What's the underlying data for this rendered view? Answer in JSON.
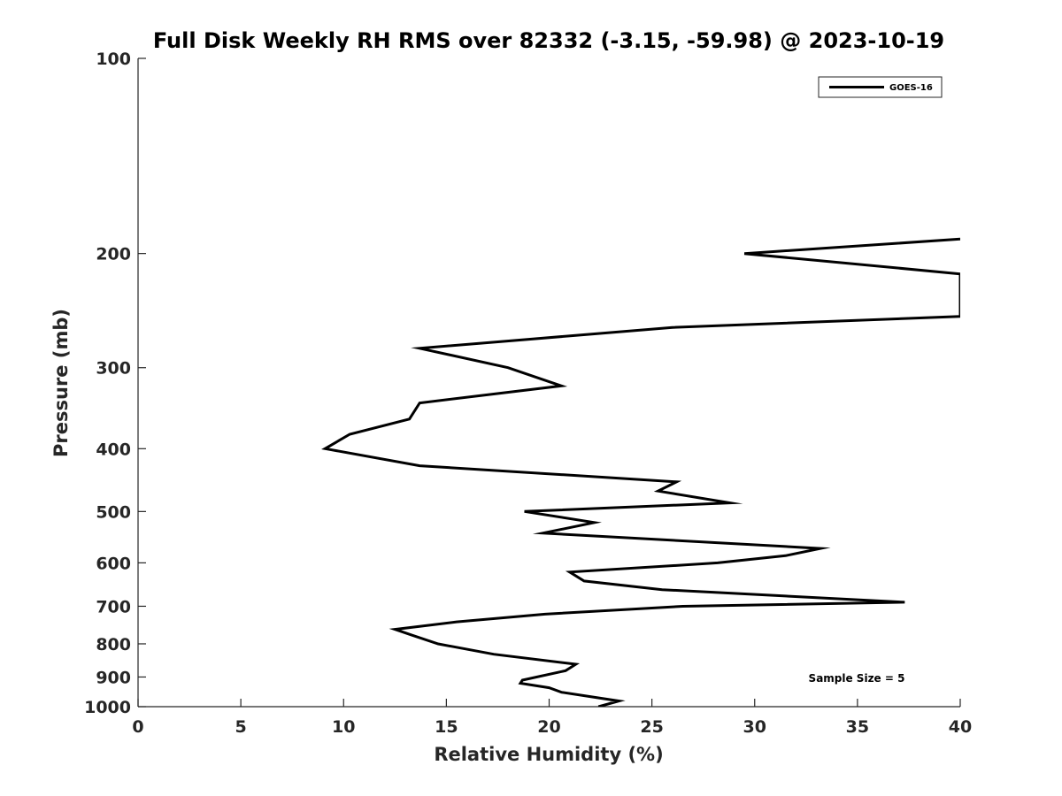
{
  "chart_data": {
    "type": "line",
    "title": "Full Disk Weekly RH RMS over 82332 (-3.15, -59.98) @ 2023-10-19",
    "xlabel": "Relative Humidity (%)",
    "ylabel": "Pressure (mb)",
    "xlim": [
      0,
      40
    ],
    "ylim": [
      100,
      1000
    ],
    "y_scale": "log",
    "y_reversed": true,
    "grid": false,
    "x_ticks": [
      0,
      5,
      10,
      15,
      20,
      25,
      30,
      35,
      40
    ],
    "x_tick_labels": [
      "0",
      "5",
      "10",
      "15",
      "20",
      "25",
      "30",
      "35",
      "40"
    ],
    "y_ticks": [
      100,
      200,
      300,
      400,
      500,
      600,
      700,
      800,
      900,
      1000
    ],
    "y_tick_labels": [
      "100",
      "200",
      "300",
      "400",
      "500",
      "600",
      "700",
      "800",
      "900",
      "1000"
    ],
    "legend_position": "top-right",
    "annotation": "Sample Size = 5",
    "series": [
      {
        "name": "GOES-16",
        "color": "#000000",
        "points": [
          [
            40.0,
            190
          ],
          [
            29.5,
            200
          ],
          [
            40.0,
            215
          ],
          [
            40.0,
            250
          ],
          [
            26.0,
            260
          ],
          [
            13.7,
            280
          ],
          [
            18.0,
            300
          ],
          [
            20.6,
            320
          ],
          [
            13.7,
            340
          ],
          [
            13.2,
            360
          ],
          [
            10.3,
            380
          ],
          [
            9.1,
            400
          ],
          [
            13.7,
            425
          ],
          [
            26.2,
            450
          ],
          [
            25.3,
            465
          ],
          [
            28.8,
            485
          ],
          [
            18.8,
            500
          ],
          [
            22.2,
            520
          ],
          [
            19.7,
            540
          ],
          [
            33.2,
            570
          ],
          [
            31.5,
            585
          ],
          [
            28.2,
            600
          ],
          [
            21.0,
            620
          ],
          [
            21.7,
            640
          ],
          [
            25.5,
            660
          ],
          [
            37.3,
            690
          ],
          [
            26.5,
            700
          ],
          [
            19.8,
            720
          ],
          [
            15.5,
            740
          ],
          [
            12.5,
            760
          ],
          [
            13.3,
            775
          ],
          [
            14.6,
            800
          ],
          [
            17.3,
            830
          ],
          [
            21.3,
            860
          ],
          [
            20.8,
            880
          ],
          [
            18.7,
            910
          ],
          [
            18.6,
            920
          ],
          [
            20.0,
            935
          ],
          [
            20.6,
            950
          ],
          [
            23.4,
            980
          ],
          [
            22.4,
            1000
          ]
        ]
      }
    ]
  }
}
